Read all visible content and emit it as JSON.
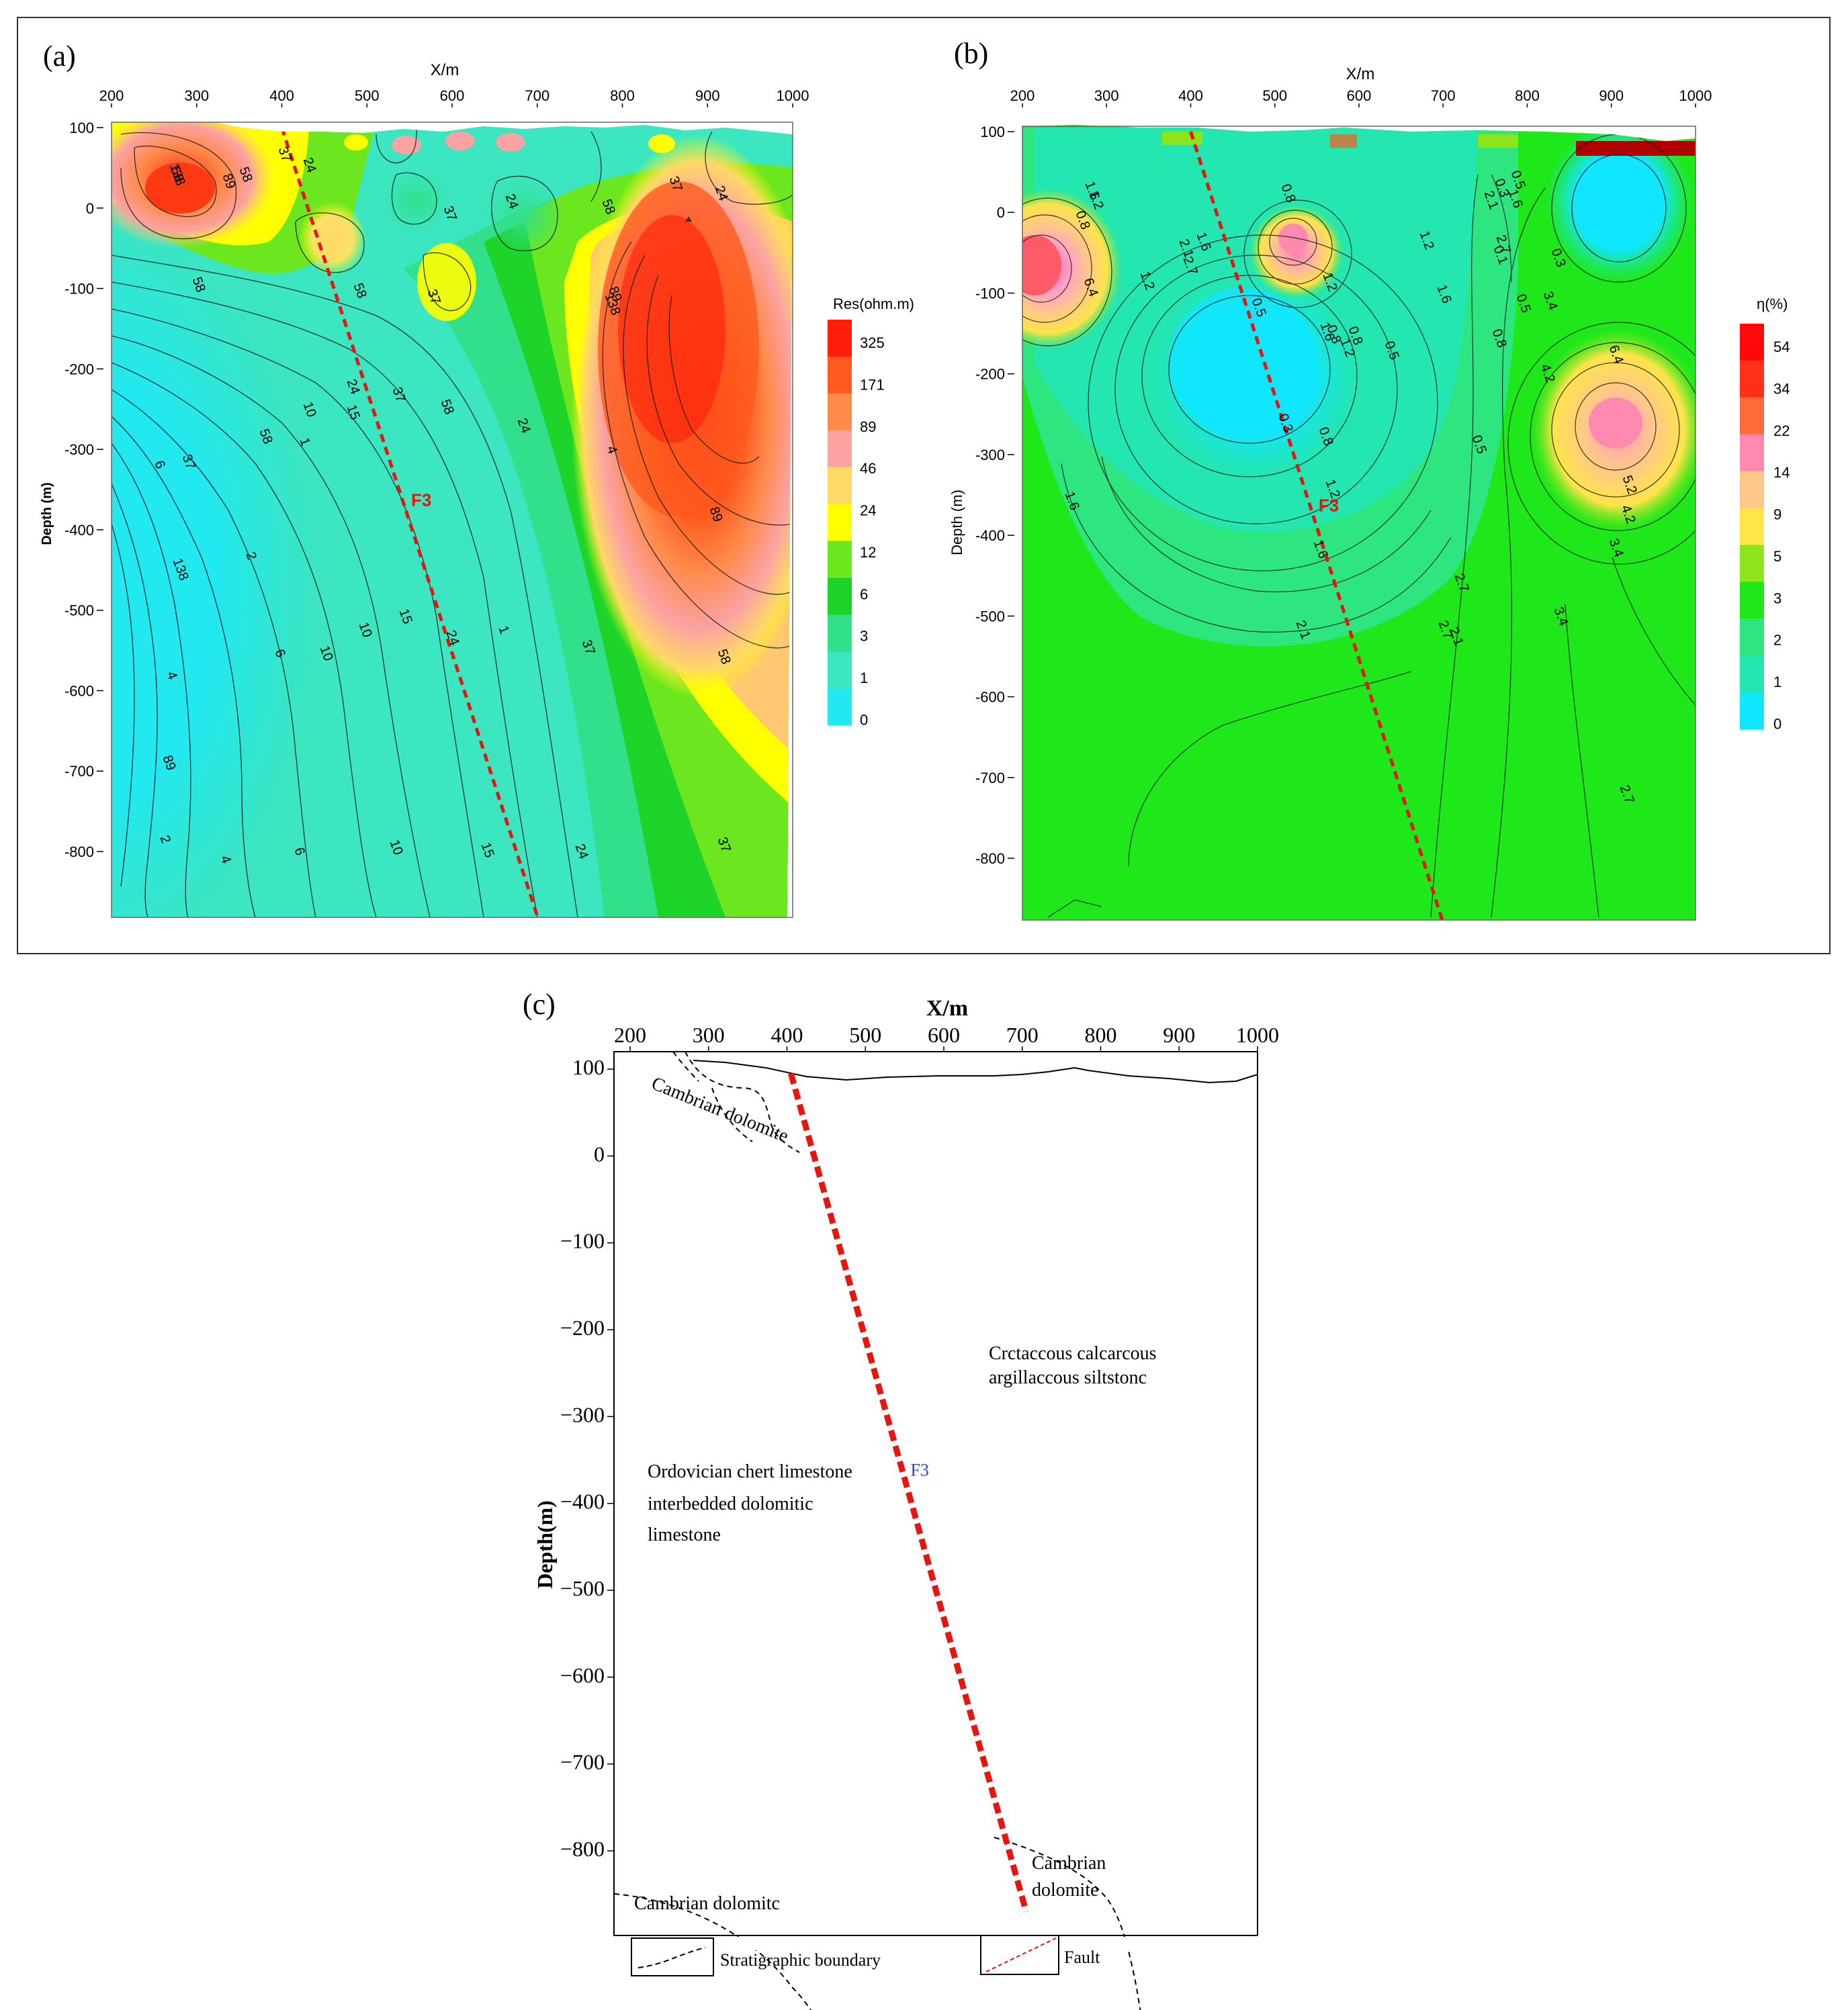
{
  "colors": {
    "fault": "#e8140e",
    "panel_a_scale": [
      "#22e8f0",
      "#3be6c0",
      "#32e08c",
      "#1ed42a",
      "#6ce61e",
      "#ffff00",
      "#ffd866",
      "#fba2a2",
      "#ff8a4a",
      "#ff5a1e",
      "#ff1e0a"
    ],
    "panel_b_scale": [
      "#10e6ff",
      "#24e6b0",
      "#2ee680",
      "#1ee81a",
      "#8ee41a",
      "#ffe44a",
      "#ffc888",
      "#ff8ab0",
      "#ff6a3a",
      "#ff3018",
      "#ff0a0a"
    ]
  },
  "chart_data": [
    {
      "panel": "(a)",
      "type": "heatmap",
      "xlabel": "X/m",
      "ylabel": "Depth (m)",
      "xlim": [
        200,
        1000
      ],
      "ylim": [
        -880,
        100
      ],
      "xticks": [
        "200",
        "300",
        "400",
        "500",
        "600",
        "700",
        "800",
        "900",
        "1000"
      ],
      "yticks": [
        "100",
        "0",
        "-100",
        "-200",
        "-300",
        "-400",
        "-500",
        "-600",
        "-700",
        "-800"
      ],
      "colorbar_label": "Res(ohm.m)",
      "colorbar_ticks": [
        "325",
        "171",
        "89",
        "46",
        "24",
        "12",
        "6",
        "3",
        "1",
        "0"
      ],
      "contour_labels": [
        "138",
        "89",
        "58",
        "37",
        "24",
        "58",
        "37",
        "37",
        "24",
        "58",
        "37",
        "24",
        "58",
        "89",
        "138",
        "24",
        "37",
        "58",
        "10",
        "15",
        "24",
        "37",
        "58",
        "1",
        "4",
        "6",
        "89",
        "2",
        "138",
        "10",
        "15",
        "24",
        "1",
        "4",
        "6",
        "10",
        "37",
        "58",
        "89",
        "2",
        "4",
        "6",
        "10",
        "15",
        "24",
        "37",
        "58"
      ],
      "fault": {
        "name": "F3",
        "x": [
          400,
          700
        ],
        "depth": [
          100,
          -880
        ]
      }
    },
    {
      "panel": "(b)",
      "type": "heatmap",
      "xlabel": "X/m",
      "ylabel": "Depth (m)",
      "xlim": [
        200,
        1000
      ],
      "ylim": [
        -880,
        100
      ],
      "xticks": [
        "200",
        "300",
        "400",
        "500",
        "600",
        "700",
        "800",
        "900",
        "1000"
      ],
      "yticks": [
        "100",
        "0",
        "-100",
        "-200",
        "-300",
        "-400",
        "-500",
        "-600",
        "-700",
        "-800"
      ],
      "colorbar_label": "η(%)",
      "colorbar_ticks": [
        "54",
        "34",
        "22",
        "14",
        "9",
        "5",
        "3",
        "2",
        "1",
        "0"
      ],
      "contour_labels": [
        "1.6",
        "1.2",
        "0.8",
        "6.4",
        "2.1",
        "1.6",
        "1.2",
        "2.7",
        "0.8",
        "0.5",
        "0.3",
        "0.8",
        "1.2",
        "1.6",
        "0.8",
        "0.5",
        "1.2",
        "1.6",
        "1.2",
        "0.5",
        "0.8",
        "0.1",
        "0.3",
        "0.5",
        "2.1",
        "1.6",
        "2.7",
        "3.4",
        "4.2",
        "6.4",
        "5.2",
        "4.2",
        "3.4",
        "0.3",
        "0.5",
        "0.8",
        "1.2",
        "1.6",
        "2.1",
        "2.7",
        "1.6",
        "2.1",
        "2.7",
        "3.4",
        "2.7"
      ],
      "fault": {
        "name": "F3",
        "x": [
          400,
          700
        ],
        "depth": [
          100,
          -880
        ]
      }
    },
    {
      "panel": "(c)",
      "type": "diagram",
      "xlabel": "X/m",
      "ylabel": "Depth(m)",
      "xlim": [
        200,
        1000
      ],
      "ylim": [
        -880,
        100
      ],
      "xticks": [
        "200",
        "300",
        "400",
        "500",
        "600",
        "700",
        "800",
        "900",
        "1000"
      ],
      "yticks": [
        "100",
        "0",
        "−100",
        "−200",
        "−300",
        "−400",
        "−500",
        "−600",
        "−700",
        "−800"
      ],
      "units": [
        {
          "label": "Cambrian dolomite"
        },
        {
          "label_lines": [
            "Crctaccous calcarcous",
            "argillaccous siltstonc"
          ]
        },
        {
          "label_lines": [
            "Ordovician chert limestone",
            "interbedded dolomitic",
            "limestone"
          ]
        },
        {
          "label": "Cambrian dolomitc"
        },
        {
          "label_lines": [
            "Cambrian",
            "dolomite"
          ]
        }
      ],
      "fault": {
        "name": "F3",
        "x": [
          405,
          705
        ],
        "depth": [
          95,
          -870
        ]
      }
    }
  ],
  "legend": {
    "stratigraphic": "Stratigraphic boundary",
    "fault": "Fault"
  }
}
